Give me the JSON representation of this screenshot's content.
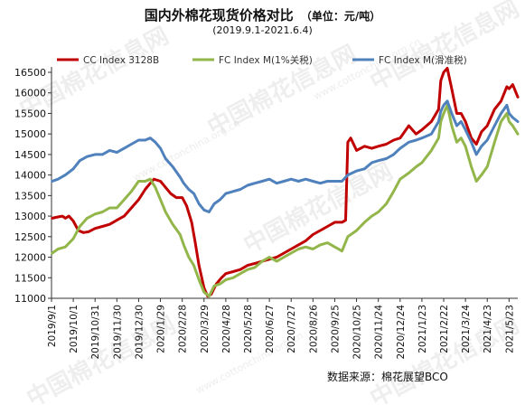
{
  "header": {
    "title": "国内外棉花现货价格对比",
    "unit": "（单位：元/吨）",
    "date_range": "(2019.9.1-2021.6.4)"
  },
  "footer": {
    "source": "数据来源：棉花展望BCO"
  },
  "watermark": {
    "text": "中国棉花信息网",
    "url": "www.cottonchina.org.cn"
  },
  "colors": {
    "cc_index": "#c00000",
    "fc_1pct": "#92b64a",
    "fc_sliding": "#4f81bd",
    "axis": "#333333"
  },
  "chart_data": {
    "type": "line",
    "ylim": [
      11000,
      16500
    ],
    "yticks": [
      11000,
      11500,
      12000,
      12500,
      13000,
      13500,
      14000,
      14500,
      15000,
      15500,
      16000,
      16500
    ],
    "xlim": [
      "2019-09-01",
      "2021-06-04"
    ],
    "xticks": [
      "2019/9/1",
      "2019/10/1",
      "2019/10/31",
      "2019/11/30",
      "2019/12/30",
      "2020/1/29",
      "2020/2/28",
      "2020/3/29",
      "2020/4/28",
      "2020/5/28",
      "2020/6/27",
      "2020/7/27",
      "2020/8/26",
      "2020/9/25",
      "2020/10/25",
      "2020/11/24",
      "2020/12/24",
      "2021/1/23",
      "2021/2/22",
      "2021/3/24",
      "2021/4/23",
      "2021/5/23"
    ],
    "series": [
      {
        "name": "CC Index 3128B",
        "color": "#c00000",
        "points": [
          [
            "2019-09-02",
            12950
          ],
          [
            "2019-09-10",
            12980
          ],
          [
            "2019-09-16",
            13000
          ],
          [
            "2019-09-20",
            12950
          ],
          [
            "2019-09-25",
            13000
          ],
          [
            "2019-10-01",
            12880
          ],
          [
            "2019-10-08",
            12650
          ],
          [
            "2019-10-15",
            12600
          ],
          [
            "2019-10-22",
            12620
          ],
          [
            "2019-10-31",
            12700
          ],
          [
            "2019-11-10",
            12750
          ],
          [
            "2019-11-20",
            12800
          ],
          [
            "2019-11-30",
            12900
          ],
          [
            "2019-12-10",
            13000
          ],
          [
            "2019-12-20",
            13200
          ],
          [
            "2019-12-30",
            13400
          ],
          [
            "2020-01-08",
            13650
          ],
          [
            "2020-01-15",
            13800
          ],
          [
            "2020-01-20",
            13900
          ],
          [
            "2020-01-29",
            13850
          ],
          [
            "2020-02-05",
            13700
          ],
          [
            "2020-02-12",
            13550
          ],
          [
            "2020-02-20",
            13450
          ],
          [
            "2020-02-28",
            13450
          ],
          [
            "2020-03-05",
            13250
          ],
          [
            "2020-03-12",
            12850
          ],
          [
            "2020-03-17",
            12350
          ],
          [
            "2020-03-22",
            11800
          ],
          [
            "2020-03-29",
            11250
          ],
          [
            "2020-04-03",
            11050
          ],
          [
            "2020-04-08",
            11100
          ],
          [
            "2020-04-15",
            11350
          ],
          [
            "2020-04-22",
            11500
          ],
          [
            "2020-04-28",
            11600
          ],
          [
            "2020-05-08",
            11650
          ],
          [
            "2020-05-18",
            11700
          ],
          [
            "2020-05-28",
            11800
          ],
          [
            "2020-06-07",
            11850
          ],
          [
            "2020-06-17",
            11900
          ],
          [
            "2020-06-27",
            11950
          ],
          [
            "2020-07-07",
            12000
          ],
          [
            "2020-07-17",
            12100
          ],
          [
            "2020-07-27",
            12200
          ],
          [
            "2020-08-06",
            12300
          ],
          [
            "2020-08-16",
            12400
          ],
          [
            "2020-08-26",
            12550
          ],
          [
            "2020-09-05",
            12650
          ],
          [
            "2020-09-15",
            12750
          ],
          [
            "2020-09-25",
            12850
          ],
          [
            "2020-10-05",
            12850
          ],
          [
            "2020-10-10",
            12900
          ],
          [
            "2020-10-13",
            14800
          ],
          [
            "2020-10-17",
            14900
          ],
          [
            "2020-10-25",
            14600
          ],
          [
            "2020-11-05",
            14700
          ],
          [
            "2020-11-15",
            14650
          ],
          [
            "2020-11-24",
            14700
          ],
          [
            "2020-12-05",
            14750
          ],
          [
            "2020-12-15",
            14850
          ],
          [
            "2020-12-24",
            14900
          ],
          [
            "2021-01-05",
            15200
          ],
          [
            "2021-01-15",
            15000
          ],
          [
            "2021-01-23",
            15100
          ],
          [
            "2021-02-05",
            15300
          ],
          [
            "2021-02-15",
            15600
          ],
          [
            "2021-02-18",
            16300
          ],
          [
            "2021-02-22",
            16500
          ],
          [
            "2021-02-27",
            16600
          ],
          [
            "2021-03-05",
            16100
          ],
          [
            "2021-03-12",
            15500
          ],
          [
            "2021-03-18",
            15500
          ],
          [
            "2021-03-24",
            15300
          ],
          [
            "2021-04-01",
            14900
          ],
          [
            "2021-04-08",
            14750
          ],
          [
            "2021-04-15",
            15050
          ],
          [
            "2021-04-23",
            15200
          ],
          [
            "2021-05-03",
            15600
          ],
          [
            "2021-05-12",
            15800
          ],
          [
            "2021-05-20",
            16150
          ],
          [
            "2021-05-23",
            16100
          ],
          [
            "2021-05-28",
            16200
          ],
          [
            "2021-06-04",
            15900
          ]
        ]
      },
      {
        "name": "FC Index M(1%关税)",
        "color": "#92b64a",
        "points": [
          [
            "2019-09-02",
            12100
          ],
          [
            "2019-09-10",
            12200
          ],
          [
            "2019-09-20",
            12250
          ],
          [
            "2019-10-01",
            12450
          ],
          [
            "2019-10-10",
            12750
          ],
          [
            "2019-10-20",
            12950
          ],
          [
            "2019-10-31",
            13050
          ],
          [
            "2019-11-10",
            13100
          ],
          [
            "2019-11-20",
            13200
          ],
          [
            "2019-11-30",
            13200
          ],
          [
            "2019-12-10",
            13400
          ],
          [
            "2019-12-20",
            13600
          ],
          [
            "2019-12-30",
            13850
          ],
          [
            "2020-01-08",
            13850
          ],
          [
            "2020-01-15",
            13900
          ],
          [
            "2020-01-22",
            13700
          ],
          [
            "2020-01-29",
            13400
          ],
          [
            "2020-02-05",
            13100
          ],
          [
            "2020-02-15",
            12800
          ],
          [
            "2020-02-25",
            12550
          ],
          [
            "2020-03-01",
            12300
          ],
          [
            "2020-03-08",
            12000
          ],
          [
            "2020-03-15",
            11800
          ],
          [
            "2020-03-22",
            11450
          ],
          [
            "2020-03-29",
            11150
          ],
          [
            "2020-04-05",
            11050
          ],
          [
            "2020-04-12",
            11300
          ],
          [
            "2020-04-20",
            11350
          ],
          [
            "2020-04-28",
            11450
          ],
          [
            "2020-05-08",
            11500
          ],
          [
            "2020-05-18",
            11600
          ],
          [
            "2020-05-28",
            11700
          ],
          [
            "2020-06-07",
            11750
          ],
          [
            "2020-06-17",
            11900
          ],
          [
            "2020-06-27",
            12000
          ],
          [
            "2020-07-07",
            11900
          ],
          [
            "2020-07-17",
            12000
          ],
          [
            "2020-07-27",
            12100
          ],
          [
            "2020-08-06",
            12200
          ],
          [
            "2020-08-16",
            12250
          ],
          [
            "2020-08-26",
            12200
          ],
          [
            "2020-09-05",
            12300
          ],
          [
            "2020-09-15",
            12350
          ],
          [
            "2020-09-25",
            12250
          ],
          [
            "2020-10-05",
            12150
          ],
          [
            "2020-10-13",
            12500
          ],
          [
            "2020-10-25",
            12650
          ],
          [
            "2020-11-05",
            12850
          ],
          [
            "2020-11-15",
            13000
          ],
          [
            "2020-11-24",
            13100
          ],
          [
            "2020-12-05",
            13300
          ],
          [
            "2020-12-15",
            13600
          ],
          [
            "2020-12-24",
            13900
          ],
          [
            "2021-01-05",
            14050
          ],
          [
            "2021-01-15",
            14200
          ],
          [
            "2021-01-23",
            14300
          ],
          [
            "2021-02-05",
            14600
          ],
          [
            "2021-02-15",
            14900
          ],
          [
            "2021-02-18",
            15300
          ],
          [
            "2021-02-22",
            15500
          ],
          [
            "2021-02-27",
            15700
          ],
          [
            "2021-03-05",
            15200
          ],
          [
            "2021-03-12",
            14800
          ],
          [
            "2021-03-18",
            14900
          ],
          [
            "2021-03-24",
            14700
          ],
          [
            "2021-04-01",
            14200
          ],
          [
            "2021-04-08",
            13850
          ],
          [
            "2021-04-15",
            14000
          ],
          [
            "2021-04-23",
            14200
          ],
          [
            "2021-05-03",
            14800
          ],
          [
            "2021-05-12",
            15300
          ],
          [
            "2021-05-20",
            15500
          ],
          [
            "2021-05-23",
            15300
          ],
          [
            "2021-05-28",
            15200
          ],
          [
            "2021-06-04",
            15000
          ]
        ]
      },
      {
        "name": "FC Index M(滑准税)",
        "color": "#4f81bd",
        "points": [
          [
            "2019-09-02",
            13850
          ],
          [
            "2019-09-10",
            13900
          ],
          [
            "2019-09-20",
            14000
          ],
          [
            "2019-10-01",
            14150
          ],
          [
            "2019-10-10",
            14350
          ],
          [
            "2019-10-20",
            14450
          ],
          [
            "2019-10-31",
            14500
          ],
          [
            "2019-11-10",
            14500
          ],
          [
            "2019-11-20",
            14600
          ],
          [
            "2019-11-30",
            14550
          ],
          [
            "2019-12-10",
            14650
          ],
          [
            "2019-12-20",
            14750
          ],
          [
            "2019-12-30",
            14850
          ],
          [
            "2020-01-08",
            14850
          ],
          [
            "2020-01-15",
            14900
          ],
          [
            "2020-01-22",
            14800
          ],
          [
            "2020-01-29",
            14650
          ],
          [
            "2020-02-05",
            14400
          ],
          [
            "2020-02-15",
            14200
          ],
          [
            "2020-02-25",
            13950
          ],
          [
            "2020-03-01",
            13800
          ],
          [
            "2020-03-08",
            13650
          ],
          [
            "2020-03-15",
            13550
          ],
          [
            "2020-03-22",
            13300
          ],
          [
            "2020-03-29",
            13150
          ],
          [
            "2020-04-05",
            13100
          ],
          [
            "2020-04-12",
            13300
          ],
          [
            "2020-04-20",
            13400
          ],
          [
            "2020-04-28",
            13550
          ],
          [
            "2020-05-08",
            13600
          ],
          [
            "2020-05-18",
            13650
          ],
          [
            "2020-05-28",
            13750
          ],
          [
            "2020-06-07",
            13800
          ],
          [
            "2020-06-17",
            13850
          ],
          [
            "2020-06-27",
            13900
          ],
          [
            "2020-07-07",
            13800
          ],
          [
            "2020-07-17",
            13850
          ],
          [
            "2020-07-27",
            13900
          ],
          [
            "2020-08-06",
            13850
          ],
          [
            "2020-08-16",
            13900
          ],
          [
            "2020-08-26",
            13850
          ],
          [
            "2020-09-05",
            13800
          ],
          [
            "2020-09-15",
            13850
          ],
          [
            "2020-09-25",
            13850
          ],
          [
            "2020-10-05",
            13850
          ],
          [
            "2020-10-13",
            14000
          ],
          [
            "2020-10-25",
            14100
          ],
          [
            "2020-11-05",
            14150
          ],
          [
            "2020-11-15",
            14300
          ],
          [
            "2020-11-24",
            14350
          ],
          [
            "2020-12-05",
            14400
          ],
          [
            "2020-12-15",
            14500
          ],
          [
            "2020-12-24",
            14650
          ],
          [
            "2021-01-05",
            14800
          ],
          [
            "2021-01-15",
            14850
          ],
          [
            "2021-01-23",
            14900
          ],
          [
            "2021-02-05",
            15000
          ],
          [
            "2021-02-15",
            15300
          ],
          [
            "2021-02-18",
            15550
          ],
          [
            "2021-02-22",
            15700
          ],
          [
            "2021-02-27",
            15800
          ],
          [
            "2021-03-05",
            15500
          ],
          [
            "2021-03-12",
            15200
          ],
          [
            "2021-03-18",
            15300
          ],
          [
            "2021-03-24",
            15100
          ],
          [
            "2021-04-01",
            14800
          ],
          [
            "2021-04-08",
            14500
          ],
          [
            "2021-04-15",
            14700
          ],
          [
            "2021-04-23",
            14850
          ],
          [
            "2021-05-03",
            15200
          ],
          [
            "2021-05-12",
            15500
          ],
          [
            "2021-05-20",
            15700
          ],
          [
            "2021-05-23",
            15500
          ],
          [
            "2021-05-28",
            15400
          ],
          [
            "2021-06-04",
            15300
          ]
        ]
      }
    ]
  }
}
